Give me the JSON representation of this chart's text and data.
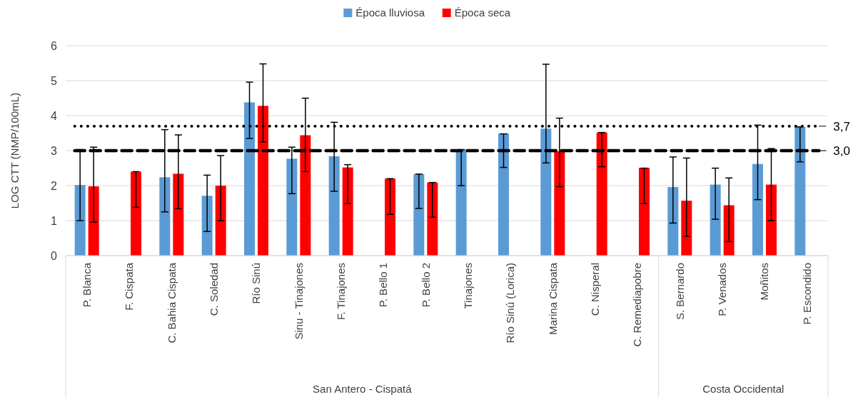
{
  "chart_data": {
    "type": "bar",
    "ylabel": "LOG CTT (NMP/100mL)",
    "categories": [
      "P. Blanca",
      "F. Cispata",
      "C. Bahia Cispata",
      "C. Soledad",
      "Río Sinú",
      "Sinu - Tinajones",
      "F. Tinajones",
      "P. Bello 1",
      "P. Bello 2",
      "Tinajones",
      "Río Sinú (Lorica)",
      "Marina Cispata",
      "C. Nisperal",
      "C. Remediapobre",
      "S. Bernardo",
      "P. Venados",
      "Moñitos",
      "P. Escondido"
    ],
    "series": [
      {
        "name": "Época lluviosa",
        "color": "#5b9bd5",
        "values": [
          2.02,
          null,
          2.24,
          1.71,
          4.38,
          2.77,
          2.84,
          null,
          2.33,
          3.03,
          3.49,
          3.63,
          null,
          null,
          1.96,
          2.03,
          2.62,
          3.68
        ],
        "errors": [
          [
            1.0,
            3.03
          ],
          null,
          [
            1.25,
            3.6
          ],
          [
            0.69,
            2.3
          ],
          [
            3.35,
            4.96
          ],
          [
            1.77,
            3.1
          ],
          [
            1.84,
            3.81
          ],
          null,
          [
            1.35,
            2.33
          ],
          [
            2.0,
            3.03
          ],
          [
            2.52,
            3.48
          ],
          [
            2.65,
            5.47
          ],
          null,
          null,
          [
            0.93,
            2.82
          ],
          [
            1.04,
            2.5
          ],
          [
            1.6,
            3.73
          ],
          [
            2.68,
            3.68
          ]
        ]
      },
      {
        "name": "Época seca",
        "color": "#ff0000",
        "values": [
          1.98,
          2.4,
          2.34,
          2.0,
          4.28,
          3.44,
          2.52,
          2.2,
          2.09,
          null,
          null,
          2.98,
          3.52,
          2.51,
          1.57,
          1.44,
          2.03,
          null
        ],
        "errors": [
          [
            0.96,
            3.1
          ],
          [
            1.38,
            2.4
          ],
          [
            1.34,
            3.45
          ],
          [
            1.0,
            2.86
          ],
          [
            3.25,
            5.48
          ],
          [
            2.4,
            4.5
          ],
          [
            1.49,
            2.6
          ],
          [
            1.18,
            2.2
          ],
          [
            1.1,
            2.09
          ],
          null,
          null,
          [
            1.97,
            3.93
          ],
          [
            2.54,
            3.52
          ],
          [
            1.49,
            2.5
          ],
          [
            0.55,
            2.79
          ],
          [
            0.4,
            2.22
          ],
          [
            1.0,
            3.06
          ],
          null
        ]
      }
    ],
    "ylim": [
      0,
      6
    ],
    "yticks": [
      0,
      1,
      2,
      3,
      4,
      5,
      6
    ],
    "grid": "y",
    "legend": "top",
    "ref_lines": [
      {
        "axis": "y",
        "value": 3.7,
        "label": "3,7",
        "color": "#000000",
        "line_style": "dotted"
      },
      {
        "axis": "y",
        "value": 3.0,
        "label": "3,0",
        "color": "#000000",
        "line_style": "dashed"
      }
    ],
    "annotations": [
      "San Antero - Cispatá",
      "Costa Occidental"
    ]
  }
}
